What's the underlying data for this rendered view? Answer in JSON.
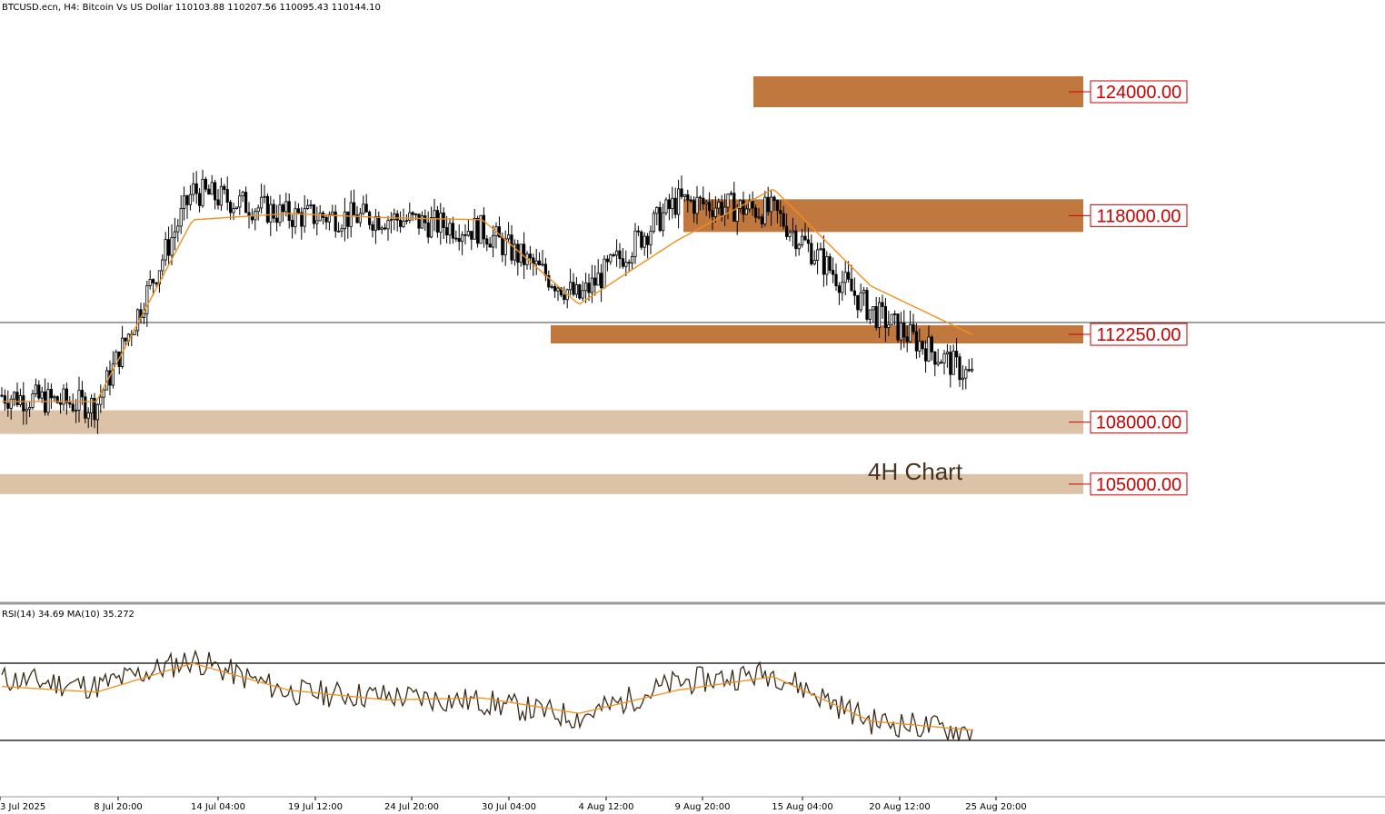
{
  "header": {
    "symbol_line": "BTCUSD.ecn, H4:  Bitcoin Vs US Dollar  110103.88 110207.56 110095.43 110144.10"
  },
  "annotation": "4H Chart",
  "levels": [
    {
      "label": "124000.00",
      "value": 124000,
      "color": "#c0783f",
      "strong": true
    },
    {
      "label": "118000.00",
      "value": 118000,
      "color": "#c0783f",
      "strong": true
    },
    {
      "label": "112250.00",
      "value": 112250,
      "color": "#c0783f",
      "strong": true
    },
    {
      "label": "108000.00",
      "value": 108000,
      "color": "#dcc2a6",
      "strong": false
    },
    {
      "label": "105000.00",
      "value": 105000,
      "color": "#dcc2a6",
      "strong": false
    }
  ],
  "colors": {
    "candle": "#000000",
    "ma": "#f0901c",
    "rsi": "#3a2a18",
    "level_text": "#cc0000",
    "annotation": "#4a3220"
  },
  "rsi_panel": {
    "label": "RSI(14) 34.69 MA(10) 35.272",
    "levels": [
      70,
      30
    ]
  },
  "x_axis_labels": [
    "3 Jul 2025",
    "8 Jul 20:00",
    "14 Jul 04:00",
    "19 Jul 12:00",
    "24 Jul 20:00",
    "30 Jul 04:00",
    "4 Aug 12:00",
    "9 Aug 20:00",
    "15 Aug 04:00",
    "20 Aug 12:00",
    "25 Aug 20:00"
  ],
  "chart_data": {
    "type": "line",
    "title": "BTCUSD.ecn, H4:  Bitcoin Vs US Dollar",
    "current_price": 110144.1,
    "x": [
      "3 Jul 2025",
      "8 Jul 20:00",
      "14 Jul 04:00",
      "19 Jul 12:00",
      "24 Jul 20:00",
      "30 Jul 04:00",
      "4 Aug 12:00",
      "9 Aug 20:00",
      "15 Aug 04:00",
      "20 Aug 12:00",
      "25 Aug 20:00"
    ],
    "series": [
      {
        "name": "Price",
        "values": [
          109300,
          108800,
          119200,
          118000,
          117900,
          117300,
          114000,
          118700,
          118200,
          113400,
          110100
        ]
      },
      {
        "name": "MA",
        "values": [
          109000,
          109000,
          117800,
          118100,
          117900,
          117800,
          113700,
          116800,
          119300,
          114600,
          112200
        ]
      }
    ],
    "rsi": [
      {
        "name": "RSI(14)",
        "values": [
          62,
          58,
          72,
          55,
          53,
          50,
          42,
          60,
          65,
          40,
          34.69
        ]
      },
      {
        "name": "MA(10)",
        "values": [
          58,
          55,
          70,
          56,
          51,
          52,
          44,
          56,
          63,
          40,
          35.27
        ]
      }
    ],
    "ylim": [
      98000,
      126000
    ],
    "rsi_ylim": [
      0,
      100
    ]
  }
}
